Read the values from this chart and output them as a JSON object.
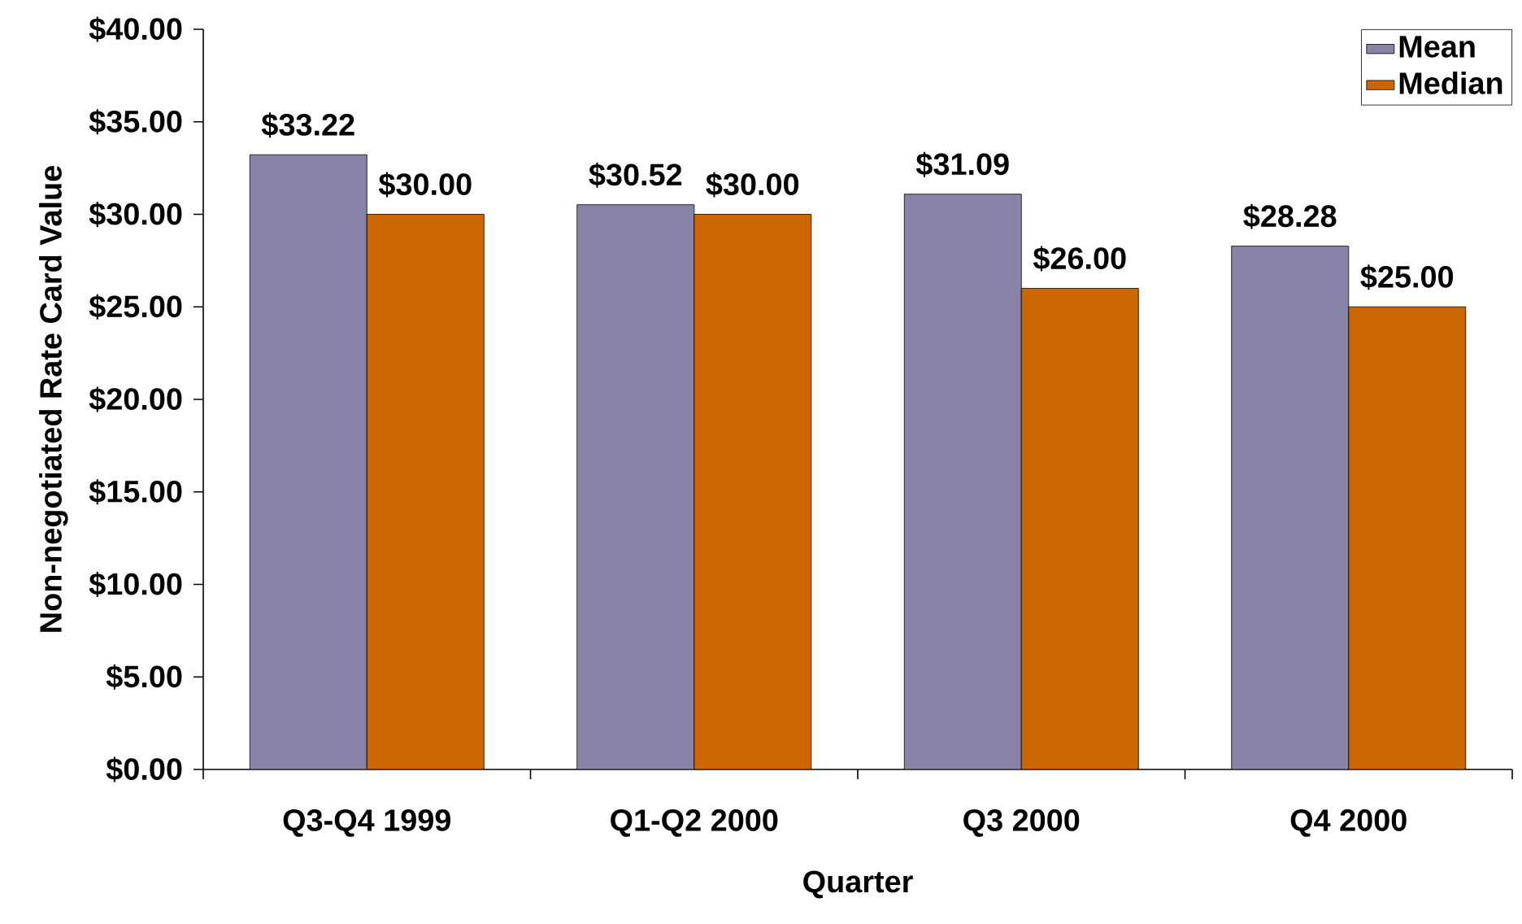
{
  "chart_data": {
    "type": "bar",
    "xlabel": "Quarter",
    "ylabel": "Non-negotiated Rate Card Value",
    "categories": [
      "Q3-Q4 1999",
      "Q1-Q2 2000",
      "Q3 2000",
      "Q4 2000"
    ],
    "series": [
      {
        "name": "Mean",
        "color": "#8884a8",
        "values": [
          33.22,
          30.52,
          31.09,
          28.28
        ],
        "value_labels": [
          "$33.22",
          "$30.52",
          "$31.09",
          "$28.28"
        ]
      },
      {
        "name": "Median",
        "color": "#cc6600",
        "values": [
          30.0,
          30.0,
          26.0,
          25.0
        ],
        "value_labels": [
          "$30.00",
          "$30.00",
          "$26.00",
          "$25.00"
        ]
      }
    ],
    "ylim": [
      0,
      40
    ],
    "yticks": [
      {
        "value": 0,
        "label": "$0.00"
      },
      {
        "value": 5,
        "label": "$5.00"
      },
      {
        "value": 10,
        "label": "$10.00"
      },
      {
        "value": 15,
        "label": "$15.00"
      },
      {
        "value": 20,
        "label": "$20.00"
      },
      {
        "value": 25,
        "label": "$25.00"
      },
      {
        "value": 30,
        "label": "$30.00"
      },
      {
        "value": 35,
        "label": "$35.00"
      },
      {
        "value": 40,
        "label": "$40.00"
      }
    ],
    "legend": "top right"
  }
}
